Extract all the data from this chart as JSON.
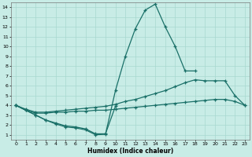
{
  "xlabel": "Humidex (Indice chaleur)",
  "bg_color": "#c8ece6",
  "grid_color": "#a8d8d0",
  "line_color": "#1a7068",
  "xlim": [
    -0.5,
    23.5
  ],
  "ylim": [
    0.5,
    14.5
  ],
  "yticks": [
    1,
    2,
    3,
    4,
    5,
    6,
    7,
    8,
    9,
    10,
    11,
    12,
    13,
    14
  ],
  "xticks": [
    0,
    1,
    2,
    3,
    4,
    5,
    6,
    7,
    8,
    9,
    10,
    11,
    12,
    13,
    14,
    15,
    16,
    17,
    18,
    19,
    20,
    21,
    22,
    23
  ],
  "curve_peak_x": [
    0,
    1,
    2,
    3,
    4,
    5,
    6,
    7,
    8,
    9,
    10,
    11,
    12,
    13,
    14,
    15,
    16,
    17,
    18
  ],
  "curve_peak_y": [
    4.0,
    3.5,
    3.0,
    2.5,
    2.1,
    1.8,
    1.7,
    1.5,
    1.0,
    1.05,
    5.5,
    9.0,
    11.8,
    13.7,
    14.3,
    12.0,
    10.0,
    7.5,
    7.5
  ],
  "curve_mid_x": [
    0,
    1,
    2,
    3,
    4,
    5,
    6,
    7,
    8,
    9,
    10,
    11,
    12,
    13,
    14,
    15,
    16,
    17,
    18,
    19,
    20,
    21,
    22,
    23
  ],
  "curve_mid_y": [
    4.0,
    3.6,
    3.3,
    3.3,
    3.4,
    3.5,
    3.6,
    3.7,
    3.8,
    3.9,
    4.1,
    4.4,
    4.6,
    4.9,
    5.2,
    5.5,
    5.9,
    6.3,
    6.6,
    6.5,
    6.5,
    6.5,
    5.0,
    4.0
  ],
  "curve_low_x": [
    0,
    1,
    2,
    3,
    4,
    5,
    6,
    7,
    8,
    9,
    10,
    11,
    12,
    13,
    14,
    15,
    16,
    17,
    18,
    19,
    20,
    21,
    22,
    23
  ],
  "curve_low_y": [
    4.0,
    3.5,
    3.2,
    3.2,
    3.3,
    3.3,
    3.4,
    3.4,
    3.5,
    3.5,
    3.6,
    3.7,
    3.8,
    3.9,
    4.0,
    4.1,
    4.2,
    4.3,
    4.4,
    4.5,
    4.6,
    4.6,
    4.4,
    4.0
  ],
  "curve_dip_x": [
    0,
    1,
    2,
    3,
    4,
    5,
    6,
    7,
    8,
    9,
    10
  ],
  "curve_dip_y": [
    4.0,
    3.5,
    3.0,
    2.5,
    2.2,
    1.9,
    1.8,
    1.6,
    1.1,
    1.1,
    3.9
  ]
}
